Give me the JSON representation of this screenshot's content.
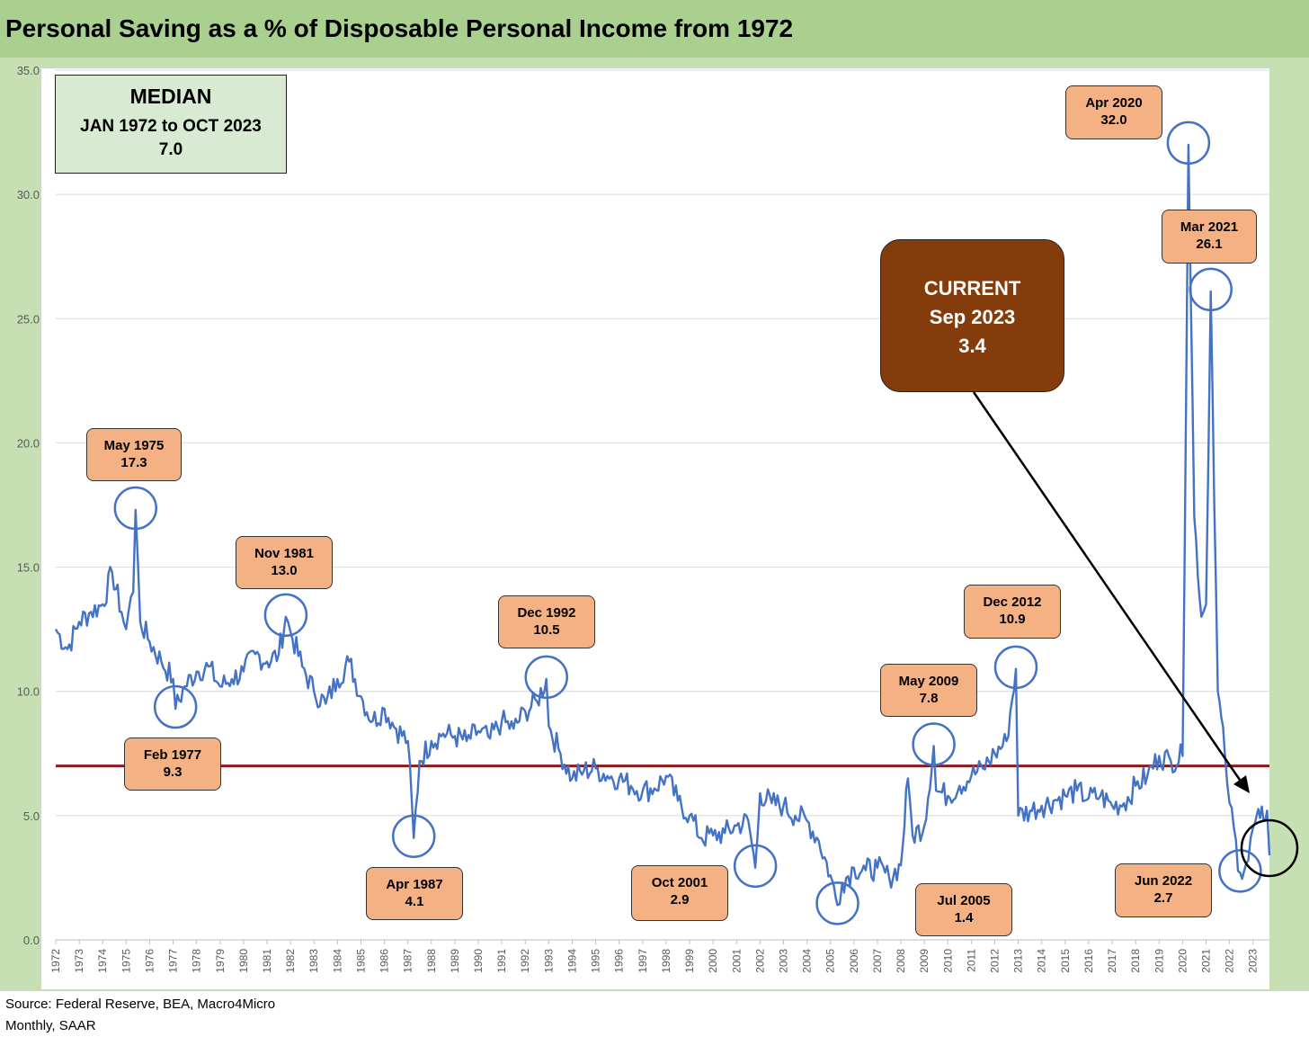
{
  "title": "Personal Saving as a % of Disposable Personal Income from 1972",
  "footer": {
    "source": "Source: Federal Reserve, BEA, Macro4Micro",
    "note": "Monthly, SAAR"
  },
  "median_box": {
    "heading": "MEDIAN",
    "range": "JAN 1972 to OCT 2023",
    "value": "7.0"
  },
  "current_box": {
    "line1": "CURRENT",
    "line2": "Sep 2023",
    "line3": "3.4"
  },
  "annotations": [
    {
      "label": "May 1975",
      "value": "17.3"
    },
    {
      "label": "Feb 1977",
      "value": "9.3"
    },
    {
      "label": "Nov 1981",
      "value": "13.0"
    },
    {
      "label": "Apr 1987",
      "value": "4.1"
    },
    {
      "label": "Dec 1992",
      "value": "10.5"
    },
    {
      "label": "Oct 2001",
      "value": "2.9"
    },
    {
      "label": "Jul 2005",
      "value": "1.4"
    },
    {
      "label": "May 2009",
      "value": "7.8"
    },
    {
      "label": "Dec 2012",
      "value": "10.9"
    },
    {
      "label": "Apr 2020",
      "value": "32.0"
    },
    {
      "label": "Mar 2021",
      "value": "26.1"
    },
    {
      "label": "Jun 2022",
      "value": "2.7"
    }
  ],
  "colors": {
    "series": "#4472c4",
    "median_line": "#8b1a1a",
    "annotation_fill": "#f4b183",
    "current_fill": "#843c0c",
    "frame": "#c6e0b4",
    "title_bar": "#a9d08e"
  },
  "chart_data": {
    "type": "line",
    "ylim": [
      0,
      35
    ],
    "yticks": [
      "0.0",
      "5.0",
      "10.0",
      "15.0",
      "20.0",
      "25.0",
      "30.0",
      "35.0"
    ],
    "xticks": [
      "1972",
      "1973",
      "1974",
      "1975",
      "1976",
      "1977",
      "1978",
      "1979",
      "1980",
      "1981",
      "1982",
      "1983",
      "1984",
      "1985",
      "1986",
      "1987",
      "1988",
      "1989",
      "1990",
      "1991",
      "1992",
      "1993",
      "1994",
      "1995",
      "1996",
      "1997",
      "1998",
      "1999",
      "2000",
      "2001",
      "2002",
      "2003",
      "2004",
      "2005",
      "2006",
      "2007",
      "2008",
      "2009",
      "2010",
      "2011",
      "2012",
      "2013",
      "2014",
      "2015",
      "2016",
      "2017",
      "2018",
      "2019",
      "2020",
      "2021",
      "2022",
      "2023"
    ],
    "grid": true,
    "median": 7.0,
    "series": [
      {
        "x": [
          1972.0,
          1972.5,
          1973.0,
          1973.5,
          1974.0,
          1974.4,
          1974.8,
          1975.0,
          1975.2,
          1975.3,
          1975.4,
          1975.6,
          1976.0,
          1976.5,
          1977.0,
          1977.1,
          1977.5,
          1978.0,
          1978.5,
          1979.0,
          1979.5,
          1980.0,
          1980.5,
          1981.0,
          1981.5,
          1981.8,
          1982.0,
          1982.5,
          1983.0,
          1983.5,
          1984.0,
          1984.5,
          1985.0,
          1985.5,
          1986.0,
          1986.5,
          1987.0,
          1987.25,
          1987.5,
          1988.0,
          1988.5,
          1989.0,
          1989.5,
          1990.0,
          1990.5,
          1991.0,
          1991.5,
          1992.0,
          1992.5,
          1992.9,
          1993.0,
          1993.5,
          1994.0,
          1994.5,
          1995.0,
          1995.5,
          1996.0,
          1996.5,
          1997.0,
          1997.5,
          1998.0,
          1998.5,
          1999.0,
          1999.5,
          2000.0,
          2000.5,
          2001.0,
          2001.5,
          2001.8,
          2002.0,
          2002.5,
          2003.0,
          2003.5,
          2004.0,
          2004.5,
          2005.0,
          2005.3,
          2005.5,
          2006.0,
          2006.5,
          2007.0,
          2007.5,
          2008.0,
          2008.3,
          2008.5,
          2009.0,
          2009.4,
          2009.5,
          2010.0,
          2010.5,
          2011.0,
          2011.5,
          2012.0,
          2012.5,
          2012.9,
          2013.0,
          2013.5,
          2014.0,
          2014.5,
          2015.0,
          2015.5,
          2016.0,
          2016.5,
          2017.0,
          2017.5,
          2018.0,
          2018.5,
          2019.0,
          2019.5,
          2020.0,
          2020.25,
          2020.5,
          2020.8,
          2021.0,
          2021.2,
          2021.5,
          2021.8,
          2022.0,
          2022.45,
          2022.8,
          2023.0,
          2023.3,
          2023.6,
          2023.7
        ],
        "y": [
          12.5,
          11.7,
          12.8,
          13.2,
          13.5,
          14.8,
          13.2,
          12.5,
          13.8,
          14.0,
          17.3,
          12.8,
          12.0,
          11.2,
          10.5,
          9.3,
          10.2,
          10.8,
          11.0,
          10.2,
          10.5,
          10.8,
          11.5,
          11.2,
          11.5,
          13.0,
          12.4,
          11.0,
          10.0,
          9.5,
          10.5,
          11.2,
          9.8,
          8.8,
          9.3,
          8.5,
          8.0,
          4.1,
          7.2,
          8.0,
          8.3,
          8.2,
          8.0,
          8.4,
          8.1,
          8.8,
          8.5,
          9.2,
          9.6,
          10.5,
          8.6,
          7.5,
          6.5,
          6.8,
          6.9,
          6.6,
          6.5,
          6.2,
          6.0,
          6.1,
          6.6,
          5.6,
          5.0,
          4.1,
          4.2,
          4.3,
          4.6,
          4.8,
          2.9,
          5.9,
          5.5,
          5.4,
          5.0,
          4.8,
          4.0,
          2.6,
          1.4,
          2.3,
          2.9,
          2.8,
          2.9,
          2.5,
          3.0,
          6.5,
          4.2,
          4.6,
          7.8,
          6.0,
          5.8,
          6.2,
          6.6,
          6.9,
          7.5,
          8.0,
          10.9,
          5.0,
          5.2,
          5.4,
          5.6,
          5.8,
          6.0,
          5.7,
          5.8,
          5.4,
          5.5,
          6.2,
          6.6,
          7.4,
          7.2,
          7.4,
          32.0,
          17.0,
          13.0,
          13.5,
          26.1,
          10.0,
          7.5,
          5.5,
          2.7,
          3.2,
          4.5,
          4.9,
          5.2,
          3.4
        ]
      }
    ]
  }
}
